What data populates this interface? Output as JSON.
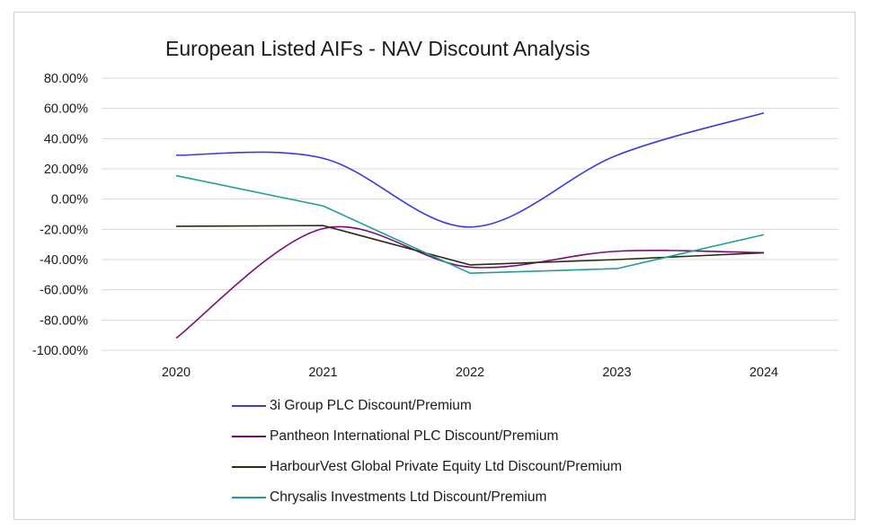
{
  "chart_data": {
    "type": "line",
    "title": "European Listed AIFs - NAV Discount Analysis",
    "xlabel": "",
    "ylabel": "",
    "categories": [
      "2020",
      "2021",
      "2022",
      "2023",
      "2024"
    ],
    "ylim": [
      -100,
      80
    ],
    "yticks": [
      80,
      60,
      40,
      20,
      0,
      -20,
      -40,
      -60,
      -80,
      -100
    ],
    "ytick_labels": [
      "80.00%",
      "60.00%",
      "40.00%",
      "20.00%",
      "0.00%",
      "-20.00%",
      "-40.00%",
      "-60.00%",
      "-80.00%",
      "-100.00%"
    ],
    "grid": true,
    "legend_position": "bottom",
    "series": [
      {
        "name": "3i Group PLC Discount/Premium",
        "values": [
          29,
          27,
          -18.5,
          29,
          57
        ],
        "color": "#3a3ae0",
        "smooth": true
      },
      {
        "name": "Pantheon International PLC Discount/Premium",
        "values": [
          -92,
          -19.5,
          -45,
          -34.5,
          -35.5
        ],
        "color": "#7a0a7a",
        "smooth": true
      },
      {
        "name": "HarbourVest Global Private Equity Ltd Discount/Premium",
        "values": [
          -18,
          -17.5,
          -43.5,
          -40,
          -35.5
        ],
        "color": "#2b2b12",
        "smooth": false
      },
      {
        "name": "Chrysalis Investments Ltd Discount/Premium",
        "values": [
          15.5,
          -4.5,
          -49,
          -46,
          -23.5
        ],
        "color": "#1f9e9a",
        "smooth": false
      }
    ]
  }
}
